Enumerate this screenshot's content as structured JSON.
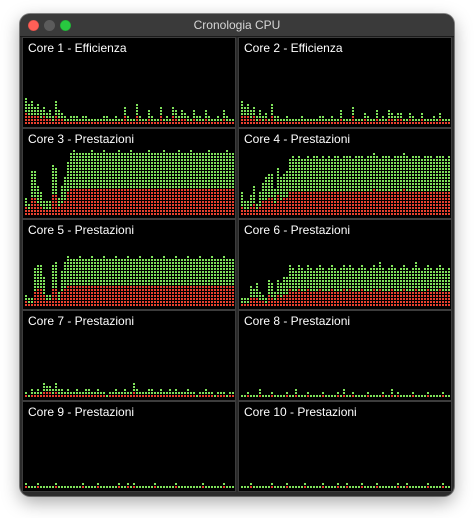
{
  "window": {
    "title": "Cronologia CPU"
  },
  "colors": {
    "user": "#7ee05a",
    "system": "#e8402e",
    "background": "#000000"
  },
  "cores": [
    {
      "label": "Core 1 - Efficienza",
      "levels": [
        0.34,
        0.28,
        0.3,
        0.22,
        0.26,
        0.18,
        0.24,
        0.16,
        0.2,
        0.12,
        0.3,
        0.18,
        0.14,
        0.1,
        0.08,
        0.1,
        0.12,
        0.1,
        0.08,
        0.1,
        0.12,
        0.08,
        0.06,
        0.08,
        0.06,
        0.08,
        0.1,
        0.12,
        0.08,
        0.06,
        0.1,
        0.08,
        0.06,
        0.22,
        0.1,
        0.08,
        0.06,
        0.28,
        0.1,
        0.08,
        0.06,
        0.2,
        0.12,
        0.08,
        0.06,
        0.24,
        0.08,
        0.1,
        0.08,
        0.22,
        0.2,
        0.1,
        0.18,
        0.16,
        0.1,
        0.08,
        0.2,
        0.12,
        0.1,
        0.08,
        0.18,
        0.1,
        0.08,
        0.06,
        0.1,
        0.08,
        0.18,
        0.1,
        0.08,
        0.06,
        0.1
      ]
    },
    {
      "label": "Core 2 - Efficienza",
      "levels": [
        0.3,
        0.24,
        0.26,
        0.18,
        0.22,
        0.12,
        0.2,
        0.1,
        0.16,
        0.08,
        0.26,
        0.12,
        0.1,
        0.08,
        0.06,
        0.1,
        0.08,
        0.06,
        0.06,
        0.08,
        0.1,
        0.06,
        0.06,
        0.08,
        0.06,
        0.06,
        0.1,
        0.1,
        0.06,
        0.06,
        0.1,
        0.06,
        0.06,
        0.18,
        0.08,
        0.06,
        0.06,
        0.24,
        0.08,
        0.06,
        0.06,
        0.16,
        0.1,
        0.06,
        0.06,
        0.2,
        0.06,
        0.1,
        0.06,
        0.18,
        0.16,
        0.1,
        0.14,
        0.14,
        0.08,
        0.06,
        0.16,
        0.1,
        0.08,
        0.06,
        0.14,
        0.08,
        0.06,
        0.06,
        0.1,
        0.06,
        0.14,
        0.08,
        0.06,
        0.06,
        0.08
      ]
    },
    {
      "label": "Core 3 - Prestazioni",
      "levels": [
        0.22,
        0.16,
        0.56,
        0.56,
        0.4,
        0.3,
        0.2,
        0.18,
        0.2,
        0.64,
        0.6,
        0.22,
        0.4,
        0.5,
        0.7,
        0.8,
        0.84,
        0.82,
        0.8,
        0.82,
        0.8,
        0.82,
        0.84,
        0.82,
        0.8,
        0.82,
        0.84,
        0.82,
        0.8,
        0.82,
        0.8,
        0.84,
        0.82,
        0.8,
        0.82,
        0.84,
        0.82,
        0.8,
        0.82,
        0.8,
        0.82,
        0.84,
        0.82,
        0.8,
        0.82,
        0.8,
        0.84,
        0.82,
        0.8,
        0.82,
        0.8,
        0.84,
        0.82,
        0.8,
        0.82,
        0.84,
        0.82,
        0.8,
        0.82,
        0.8,
        0.82,
        0.84,
        0.82,
        0.8,
        0.82,
        0.8,
        0.82,
        0.84,
        0.82,
        0.8,
        0.82
      ]
    },
    {
      "label": "Core 4 - Prestazioni",
      "levels": [
        0.3,
        0.2,
        0.18,
        0.26,
        0.4,
        0.14,
        0.32,
        0.44,
        0.5,
        0.54,
        0.52,
        0.34,
        0.62,
        0.5,
        0.54,
        0.58,
        0.74,
        0.76,
        0.74,
        0.76,
        0.72,
        0.74,
        0.76,
        0.74,
        0.76,
        0.78,
        0.74,
        0.76,
        0.74,
        0.76,
        0.74,
        0.78,
        0.76,
        0.74,
        0.76,
        0.78,
        0.76,
        0.74,
        0.76,
        0.78,
        0.76,
        0.74,
        0.76,
        0.78,
        0.8,
        0.76,
        0.74,
        0.76,
        0.78,
        0.76,
        0.74,
        0.76,
        0.78,
        0.76,
        0.8,
        0.76,
        0.74,
        0.76,
        0.78,
        0.76,
        0.74,
        0.76,
        0.78,
        0.76,
        0.74,
        0.76,
        0.78,
        0.76,
        0.74,
        0.76,
        0.78
      ]
    },
    {
      "label": "Core 5 - Prestazioni",
      "levels": [
        0.14,
        0.1,
        0.12,
        0.5,
        0.54,
        0.52,
        0.4,
        0.16,
        0.14,
        0.52,
        0.58,
        0.2,
        0.46,
        0.56,
        0.64,
        0.62,
        0.6,
        0.62,
        0.64,
        0.62,
        0.6,
        0.62,
        0.64,
        0.62,
        0.6,
        0.62,
        0.64,
        0.62,
        0.6,
        0.62,
        0.64,
        0.62,
        0.6,
        0.62,
        0.64,
        0.62,
        0.6,
        0.62,
        0.64,
        0.62,
        0.6,
        0.62,
        0.64,
        0.62,
        0.6,
        0.62,
        0.64,
        0.62,
        0.6,
        0.62,
        0.64,
        0.62,
        0.6,
        0.62,
        0.64,
        0.62,
        0.6,
        0.62,
        0.64,
        0.62,
        0.6,
        0.62,
        0.64,
        0.62,
        0.6,
        0.62,
        0.64,
        0.62,
        0.6,
        0.62,
        0.62
      ]
    },
    {
      "label": "Core 6 - Prestazioni",
      "levels": [
        0.12,
        0.1,
        0.12,
        0.28,
        0.24,
        0.32,
        0.2,
        0.14,
        0.1,
        0.34,
        0.3,
        0.2,
        0.36,
        0.3,
        0.38,
        0.4,
        0.52,
        0.5,
        0.48,
        0.52,
        0.5,
        0.48,
        0.52,
        0.5,
        0.48,
        0.5,
        0.52,
        0.5,
        0.48,
        0.5,
        0.52,
        0.5,
        0.48,
        0.5,
        0.52,
        0.5,
        0.54,
        0.5,
        0.48,
        0.5,
        0.52,
        0.5,
        0.48,
        0.5,
        0.52,
        0.5,
        0.56,
        0.5,
        0.48,
        0.5,
        0.52,
        0.5,
        0.48,
        0.5,
        0.52,
        0.5,
        0.48,
        0.5,
        0.56,
        0.5,
        0.48,
        0.5,
        0.52,
        0.5,
        0.48,
        0.5,
        0.52,
        0.5,
        0.48,
        0.5,
        0.5
      ]
    },
    {
      "label": "Core 7 - Prestazioni",
      "levels": [
        0.06,
        0.04,
        0.1,
        0.08,
        0.12,
        0.06,
        0.18,
        0.16,
        0.14,
        0.12,
        0.18,
        0.1,
        0.12,
        0.06,
        0.1,
        0.08,
        0.06,
        0.12,
        0.08,
        0.06,
        0.1,
        0.12,
        0.08,
        0.06,
        0.1,
        0.08,
        0.06,
        0.04,
        0.08,
        0.06,
        0.1,
        0.08,
        0.06,
        0.12,
        0.08,
        0.06,
        0.18,
        0.1,
        0.06,
        0.08,
        0.06,
        0.1,
        0.12,
        0.08,
        0.06,
        0.1,
        0.08,
        0.06,
        0.1,
        0.08,
        0.12,
        0.06,
        0.08,
        0.06,
        0.1,
        0.08,
        0.06,
        0.04,
        0.08,
        0.06,
        0.1,
        0.08,
        0.06,
        0.04,
        0.06,
        0.08,
        0.06,
        0.04,
        0.06,
        0.08,
        0.04
      ]
    },
    {
      "label": "Core 8 - Prestazioni",
      "levels": [
        0.04,
        0.02,
        0.06,
        0.04,
        0.02,
        0.04,
        0.12,
        0.04,
        0.02,
        0.04,
        0.06,
        0.02,
        0.04,
        0.02,
        0.04,
        0.06,
        0.02,
        0.04,
        0.12,
        0.04,
        0.02,
        0.04,
        0.06,
        0.02,
        0.04,
        0.02,
        0.04,
        0.06,
        0.02,
        0.04,
        0.02,
        0.04,
        0.06,
        0.02,
        0.1,
        0.02,
        0.04,
        0.06,
        0.02,
        0.04,
        0.02,
        0.04,
        0.06,
        0.02,
        0.04,
        0.02,
        0.04,
        0.06,
        0.02,
        0.04,
        0.1,
        0.04,
        0.06,
        0.02,
        0.04,
        0.02,
        0.04,
        0.06,
        0.02,
        0.04,
        0.02,
        0.04,
        0.06,
        0.02,
        0.04,
        0.02,
        0.04,
        0.06,
        0.02,
        0.04,
        0.02
      ]
    },
    {
      "label": "Core 9 - Prestazioni",
      "levels": [
        0.06,
        0.02,
        0.04,
        0.02,
        0.06,
        0.04,
        0.02,
        0.04,
        0.02,
        0.04,
        0.06,
        0.04,
        0.02,
        0.04,
        0.02,
        0.04,
        0.02,
        0.04,
        0.02,
        0.06,
        0.02,
        0.04,
        0.02,
        0.04,
        0.06,
        0.02,
        0.04,
        0.02,
        0.04,
        0.02,
        0.04,
        0.06,
        0.02,
        0.04,
        0.06,
        0.04,
        0.06,
        0.02,
        0.04,
        0.02,
        0.04,
        0.02,
        0.04,
        0.06,
        0.02,
        0.04,
        0.02,
        0.04,
        0.02,
        0.04,
        0.06,
        0.02,
        0.04,
        0.02,
        0.04,
        0.02,
        0.04,
        0.02,
        0.04,
        0.06,
        0.02,
        0.04,
        0.02,
        0.04,
        0.02,
        0.04,
        0.06,
        0.02,
        0.04,
        0.02,
        0.02
      ]
    },
    {
      "label": "Core 10 - Prestazioni",
      "levels": [
        0.04,
        0.02,
        0.04,
        0.06,
        0.02,
        0.04,
        0.02,
        0.04,
        0.02,
        0.04,
        0.06,
        0.02,
        0.04,
        0.02,
        0.04,
        0.06,
        0.02,
        0.04,
        0.02,
        0.04,
        0.02,
        0.06,
        0.04,
        0.02,
        0.04,
        0.02,
        0.04,
        0.06,
        0.02,
        0.04,
        0.02,
        0.04,
        0.06,
        0.02,
        0.04,
        0.06,
        0.02,
        0.04,
        0.02,
        0.04,
        0.06,
        0.02,
        0.04,
        0.02,
        0.04,
        0.06,
        0.02,
        0.04,
        0.02,
        0.04,
        0.02,
        0.04,
        0.06,
        0.02,
        0.04,
        0.06,
        0.02,
        0.04,
        0.02,
        0.04,
        0.02,
        0.04,
        0.06,
        0.02,
        0.04,
        0.02,
        0.04,
        0.06,
        0.02,
        0.04,
        0.02
      ]
    }
  ]
}
